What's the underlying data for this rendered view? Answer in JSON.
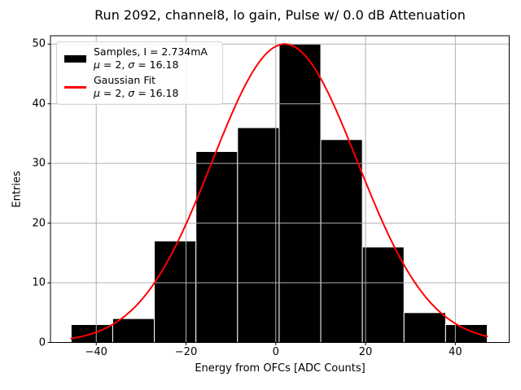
{
  "chart_data": {
    "type": "bar",
    "subtype": "histogram-with-gaussian-fit",
    "title": "Run 2092, channel8, lo gain, Pulse w/ 0.0 dB Attenuation",
    "xlabel": "Energy from OFCs [ADC Counts]",
    "ylabel": "Entries",
    "bin_edges": [
      -45.6,
      -36.33,
      -27.06,
      -17.79,
      -8.52,
      0.75,
      10.02,
      19.29,
      28.56,
      37.83,
      47.1
    ],
    "counts": [
      3,
      4,
      17,
      32,
      36,
      50,
      34,
      16,
      5,
      3
    ],
    "series": [
      {
        "name": "Samples, I = 2.734mA",
        "kind": "histogram",
        "mu": 2,
        "sigma": 16.18
      },
      {
        "name": "Gaussian Fit",
        "kind": "line",
        "mu": 2,
        "sigma": 16.18,
        "amplitude": 50,
        "x_range": [
          -45.6,
          47.1
        ]
      }
    ],
    "xticks": [
      -40,
      -20,
      0,
      20,
      40
    ],
    "xtick_labels": [
      "−40",
      "−20",
      "0",
      "20",
      "40"
    ],
    "yticks": [
      0,
      10,
      20,
      30,
      40,
      50
    ],
    "ytick_labels": [
      "0",
      "10",
      "20",
      "30",
      "40",
      "50"
    ],
    "xlim": [
      -50.2,
      52.0
    ],
    "ylim": [
      0,
      51.4
    ],
    "grid": true,
    "grid_on_top": true,
    "legend_position": "upper left",
    "colors": {
      "bar_fill": "#000000",
      "bar_edge": "#ffffff",
      "fit_line": "#ff0000",
      "grid": "#b0b0b0",
      "spine": "#000000"
    }
  },
  "legend": {
    "items": [
      {
        "label": "Samples, I = 2.734mA",
        "stats": {
          "mu_symbol": "μ",
          "mu_rest": " = 2, ",
          "sigma_symbol": "σ",
          "sigma_rest": " = 16.18"
        }
      },
      {
        "label": "Gaussian Fit",
        "stats": {
          "mu_symbol": "μ",
          "mu_rest": " = 2, ",
          "sigma_symbol": "σ",
          "sigma_rest": " = 16.18"
        }
      }
    ]
  }
}
